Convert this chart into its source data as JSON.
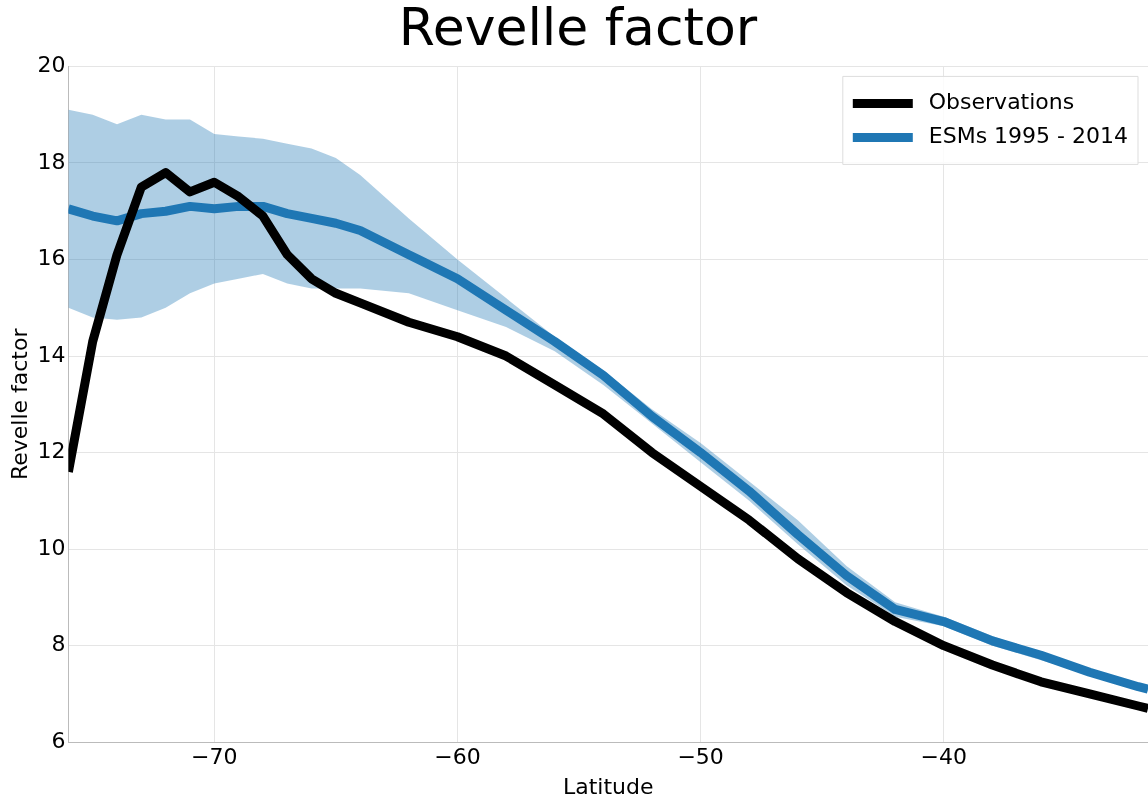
{
  "chart_data": {
    "type": "line",
    "title": "Revelle factor",
    "xlabel": "Latitude",
    "ylabel": "Revelle factor",
    "x": [
      -76,
      -75,
      -74,
      -73,
      -72,
      -71,
      -70,
      -69,
      -68,
      -67,
      -66,
      -65,
      -64,
      -62,
      -60,
      -58,
      -56,
      -54,
      -52,
      -50,
      -48,
      -46,
      -44,
      -42,
      -40,
      -38,
      -36,
      -34,
      -32,
      -31.6
    ],
    "series": [
      {
        "name": "Observations",
        "color": "#000000",
        "values": [
          11.6,
          14.3,
          16.1,
          17.5,
          17.8,
          17.4,
          17.6,
          17.3,
          16.9,
          16.1,
          15.6,
          15.3,
          15.1,
          14.7,
          14.4,
          14.0,
          13.4,
          12.8,
          12.0,
          11.3,
          10.6,
          9.8,
          9.1,
          8.5,
          8.0,
          7.6,
          7.25,
          7.0,
          6.75,
          6.7
        ]
      },
      {
        "name": "ESMs 1995 - 2014",
        "color": "#1f77b4",
        "values": [
          17.05,
          16.9,
          16.8,
          16.95,
          17.0,
          17.1,
          17.05,
          17.1,
          17.1,
          16.95,
          16.85,
          16.75,
          16.6,
          16.1,
          15.6,
          14.95,
          14.3,
          13.6,
          12.75,
          12.0,
          11.2,
          10.3,
          9.45,
          8.75,
          8.5,
          8.1,
          7.8,
          7.45,
          7.15,
          7.1
        ],
        "lower": [
          15.0,
          14.8,
          14.75,
          14.8,
          15.0,
          15.3,
          15.5,
          15.6,
          15.7,
          15.5,
          15.4,
          15.4,
          15.4,
          15.3,
          14.95,
          14.6,
          14.1,
          13.4,
          12.6,
          11.8,
          11.0,
          10.1,
          9.25,
          8.6,
          8.4,
          8.0,
          7.7,
          7.4,
          7.1,
          7.05
        ],
        "upper": [
          19.1,
          19.0,
          18.8,
          19.0,
          18.9,
          18.9,
          18.6,
          18.55,
          18.5,
          18.4,
          18.3,
          18.1,
          17.75,
          16.85,
          16.0,
          15.2,
          14.4,
          13.7,
          12.9,
          12.2,
          11.4,
          10.6,
          9.65,
          8.9,
          8.6,
          8.2,
          7.85,
          7.5,
          7.2,
          7.15
        ]
      }
    ],
    "xlim": [
      -76,
      -31.6
    ],
    "xticks": [
      {
        "value": -70,
        "label": "−70"
      },
      {
        "value": -60,
        "label": "−60"
      },
      {
        "value": -50,
        "label": "−50"
      },
      {
        "value": -40,
        "label": "−40"
      }
    ],
    "ylim": [
      6,
      20
    ],
    "yticks": [
      6,
      8,
      10,
      12,
      14,
      16,
      18,
      20
    ],
    "grid": true,
    "legend": "top right",
    "marker": "none",
    "line_style": "solid"
  }
}
